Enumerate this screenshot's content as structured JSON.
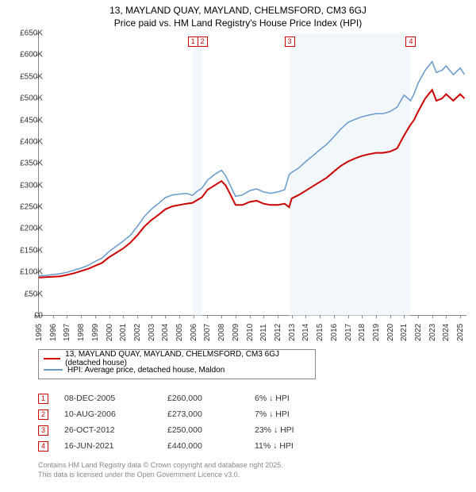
{
  "titles": {
    "line1": "13, MAYLAND QUAY, MAYLAND, CHELMSFORD, CM3 6GJ",
    "line2": "Price paid vs. HM Land Registry's House Price Index (HPI)"
  },
  "chart": {
    "type": "line",
    "background_color": "#ffffff",
    "grid_color": "none",
    "axis_color": "#888888",
    "label_fontsize": 10,
    "y": {
      "min": 0,
      "max": 650000,
      "tick_step": 50000,
      "ticks": [
        "£0",
        "£50K",
        "£100K",
        "£150K",
        "£200K",
        "£250K",
        "£300K",
        "£350K",
        "£400K",
        "£450K",
        "£500K",
        "£550K",
        "£600K",
        "£650K"
      ]
    },
    "x": {
      "min": 1995,
      "max": 2025.5,
      "ticks": [
        1995,
        1996,
        1997,
        1998,
        1999,
        2000,
        2001,
        2002,
        2003,
        2004,
        2005,
        2006,
        2007,
        2008,
        2009,
        2010,
        2011,
        2012,
        2013,
        2014,
        2015,
        2016,
        2017,
        2018,
        2019,
        2020,
        2021,
        2022,
        2023,
        2024,
        2025
      ]
    },
    "shaded_regions": [
      {
        "from": 2005.94,
        "to": 2006.61,
        "color": "#e8f0f8"
      },
      {
        "from": 2012.82,
        "to": 2021.46,
        "color": "#e8f0f8"
      }
    ],
    "markers": [
      {
        "n": "1",
        "x": 2005.94,
        "price": 260000,
        "date": "08-DEC-2005",
        "diff": "6% ↓ HPI"
      },
      {
        "n": "2",
        "x": 2006.61,
        "price": 273000,
        "date": "10-AUG-2006",
        "diff": "7% ↓ HPI"
      },
      {
        "n": "3",
        "x": 2012.82,
        "price": 250000,
        "date": "26-OCT-2012",
        "diff": "23% ↓ HPI"
      },
      {
        "n": "4",
        "x": 2021.46,
        "price": 440000,
        "date": "16-JUN-2021",
        "diff": "11% ↓ HPI"
      }
    ],
    "series_red": {
      "label": "13, MAYLAND QUAY, MAYLAND, CHELMSFORD, CM3 6GJ (detached house)",
      "color": "#cc0000",
      "line_width": 2,
      "data": [
        [
          1995,
          88000
        ],
        [
          1995.5,
          89000
        ],
        [
          1996,
          90000
        ],
        [
          1996.5,
          91000
        ],
        [
          1997,
          94000
        ],
        [
          1997.5,
          98000
        ],
        [
          1998,
          103000
        ],
        [
          1998.5,
          108000
        ],
        [
          1999,
          115000
        ],
        [
          1999.5,
          122000
        ],
        [
          2000,
          135000
        ],
        [
          2000.5,
          145000
        ],
        [
          2001,
          155000
        ],
        [
          2001.5,
          168000
        ],
        [
          2002,
          185000
        ],
        [
          2002.5,
          205000
        ],
        [
          2003,
          220000
        ],
        [
          2003.5,
          232000
        ],
        [
          2004,
          245000
        ],
        [
          2004.5,
          252000
        ],
        [
          2005,
          255000
        ],
        [
          2005.5,
          258000
        ],
        [
          2005.94,
          260000
        ],
        [
          2006.2,
          265000
        ],
        [
          2006.61,
          273000
        ],
        [
          2007,
          290000
        ],
        [
          2007.5,
          300000
        ],
        [
          2008,
          310000
        ],
        [
          2008.3,
          300000
        ],
        [
          2008.7,
          275000
        ],
        [
          2009,
          255000
        ],
        [
          2009.5,
          255000
        ],
        [
          2010,
          262000
        ],
        [
          2010.5,
          265000
        ],
        [
          2011,
          258000
        ],
        [
          2011.5,
          255000
        ],
        [
          2012,
          255000
        ],
        [
          2012.5,
          258000
        ],
        [
          2012.82,
          250000
        ],
        [
          2013,
          270000
        ],
        [
          2013.5,
          278000
        ],
        [
          2014,
          288000
        ],
        [
          2014.5,
          298000
        ],
        [
          2015,
          308000
        ],
        [
          2015.5,
          318000
        ],
        [
          2016,
          332000
        ],
        [
          2016.5,
          345000
        ],
        [
          2017,
          355000
        ],
        [
          2017.5,
          362000
        ],
        [
          2018,
          368000
        ],
        [
          2018.5,
          372000
        ],
        [
          2019,
          375000
        ],
        [
          2019.5,
          375000
        ],
        [
          2020,
          378000
        ],
        [
          2020.5,
          385000
        ],
        [
          2021,
          415000
        ],
        [
          2021.46,
          440000
        ],
        [
          2021.7,
          450000
        ],
        [
          2022,
          470000
        ],
        [
          2022.5,
          500000
        ],
        [
          2023,
          520000
        ],
        [
          2023.3,
          495000
        ],
        [
          2023.7,
          500000
        ],
        [
          2024,
          510000
        ],
        [
          2024.5,
          495000
        ],
        [
          2025,
          510000
        ],
        [
          2025.3,
          500000
        ]
      ]
    },
    "series_blue": {
      "label": "HPI: Average price, detached house, Maldon",
      "color": "#6699cc",
      "line_width": 1.5,
      "data": [
        [
          1995,
          92000
        ],
        [
          1995.5,
          93000
        ],
        [
          1996,
          95000
        ],
        [
          1996.5,
          97000
        ],
        [
          1997,
          100000
        ],
        [
          1997.5,
          105000
        ],
        [
          1998,
          110000
        ],
        [
          1998.5,
          116000
        ],
        [
          1999,
          125000
        ],
        [
          1999.5,
          133000
        ],
        [
          2000,
          148000
        ],
        [
          2000.5,
          160000
        ],
        [
          2001,
          172000
        ],
        [
          2001.5,
          185000
        ],
        [
          2002,
          205000
        ],
        [
          2002.5,
          228000
        ],
        [
          2003,
          245000
        ],
        [
          2003.5,
          258000
        ],
        [
          2004,
          272000
        ],
        [
          2004.5,
          278000
        ],
        [
          2005,
          280000
        ],
        [
          2005.5,
          282000
        ],
        [
          2005.94,
          277000
        ],
        [
          2006.2,
          285000
        ],
        [
          2006.61,
          294000
        ],
        [
          2007,
          312000
        ],
        [
          2007.5,
          325000
        ],
        [
          2008,
          335000
        ],
        [
          2008.3,
          322000
        ],
        [
          2008.7,
          295000
        ],
        [
          2009,
          275000
        ],
        [
          2009.5,
          278000
        ],
        [
          2010,
          288000
        ],
        [
          2010.5,
          292000
        ],
        [
          2011,
          285000
        ],
        [
          2011.5,
          282000
        ],
        [
          2012,
          285000
        ],
        [
          2012.5,
          290000
        ],
        [
          2012.82,
          325000
        ],
        [
          2013,
          330000
        ],
        [
          2013.5,
          340000
        ],
        [
          2014,
          355000
        ],
        [
          2014.5,
          368000
        ],
        [
          2015,
          382000
        ],
        [
          2015.5,
          395000
        ],
        [
          2016,
          412000
        ],
        [
          2016.5,
          430000
        ],
        [
          2017,
          445000
        ],
        [
          2017.5,
          452000
        ],
        [
          2018,
          458000
        ],
        [
          2018.5,
          462000
        ],
        [
          2019,
          465000
        ],
        [
          2019.5,
          465000
        ],
        [
          2020,
          470000
        ],
        [
          2020.5,
          480000
        ],
        [
          2021,
          508000
        ],
        [
          2021.46,
          495000
        ],
        [
          2021.7,
          510000
        ],
        [
          2022,
          535000
        ],
        [
          2022.5,
          565000
        ],
        [
          2023,
          585000
        ],
        [
          2023.3,
          560000
        ],
        [
          2023.7,
          565000
        ],
        [
          2024,
          575000
        ],
        [
          2024.5,
          555000
        ],
        [
          2025,
          570000
        ],
        [
          2025.3,
          555000
        ]
      ]
    }
  },
  "legend": {
    "row1": {
      "color": "#cc0000",
      "label": "13, MAYLAND QUAY, MAYLAND, CHELMSFORD, CM3 6GJ (detached house)"
    },
    "row2": {
      "color": "#6699cc",
      "label": "HPI: Average price, detached house, Maldon"
    }
  },
  "table": {
    "rows": [
      {
        "n": "1",
        "date": "08-DEC-2005",
        "price": "£260,000",
        "diff": "6% ↓ HPI"
      },
      {
        "n": "2",
        "date": "10-AUG-2006",
        "price": "£273,000",
        "diff": "7% ↓ HPI"
      },
      {
        "n": "3",
        "date": "26-OCT-2012",
        "price": "£250,000",
        "diff": "23% ↓ HPI"
      },
      {
        "n": "4",
        "date": "16-JUN-2021",
        "price": "£440,000",
        "diff": "11% ↓ HPI"
      }
    ]
  },
  "footer": {
    "line1": "Contains HM Land Registry data © Crown copyright and database right 2025.",
    "line2": "This data is licensed under the Open Government Licence v3.0."
  }
}
